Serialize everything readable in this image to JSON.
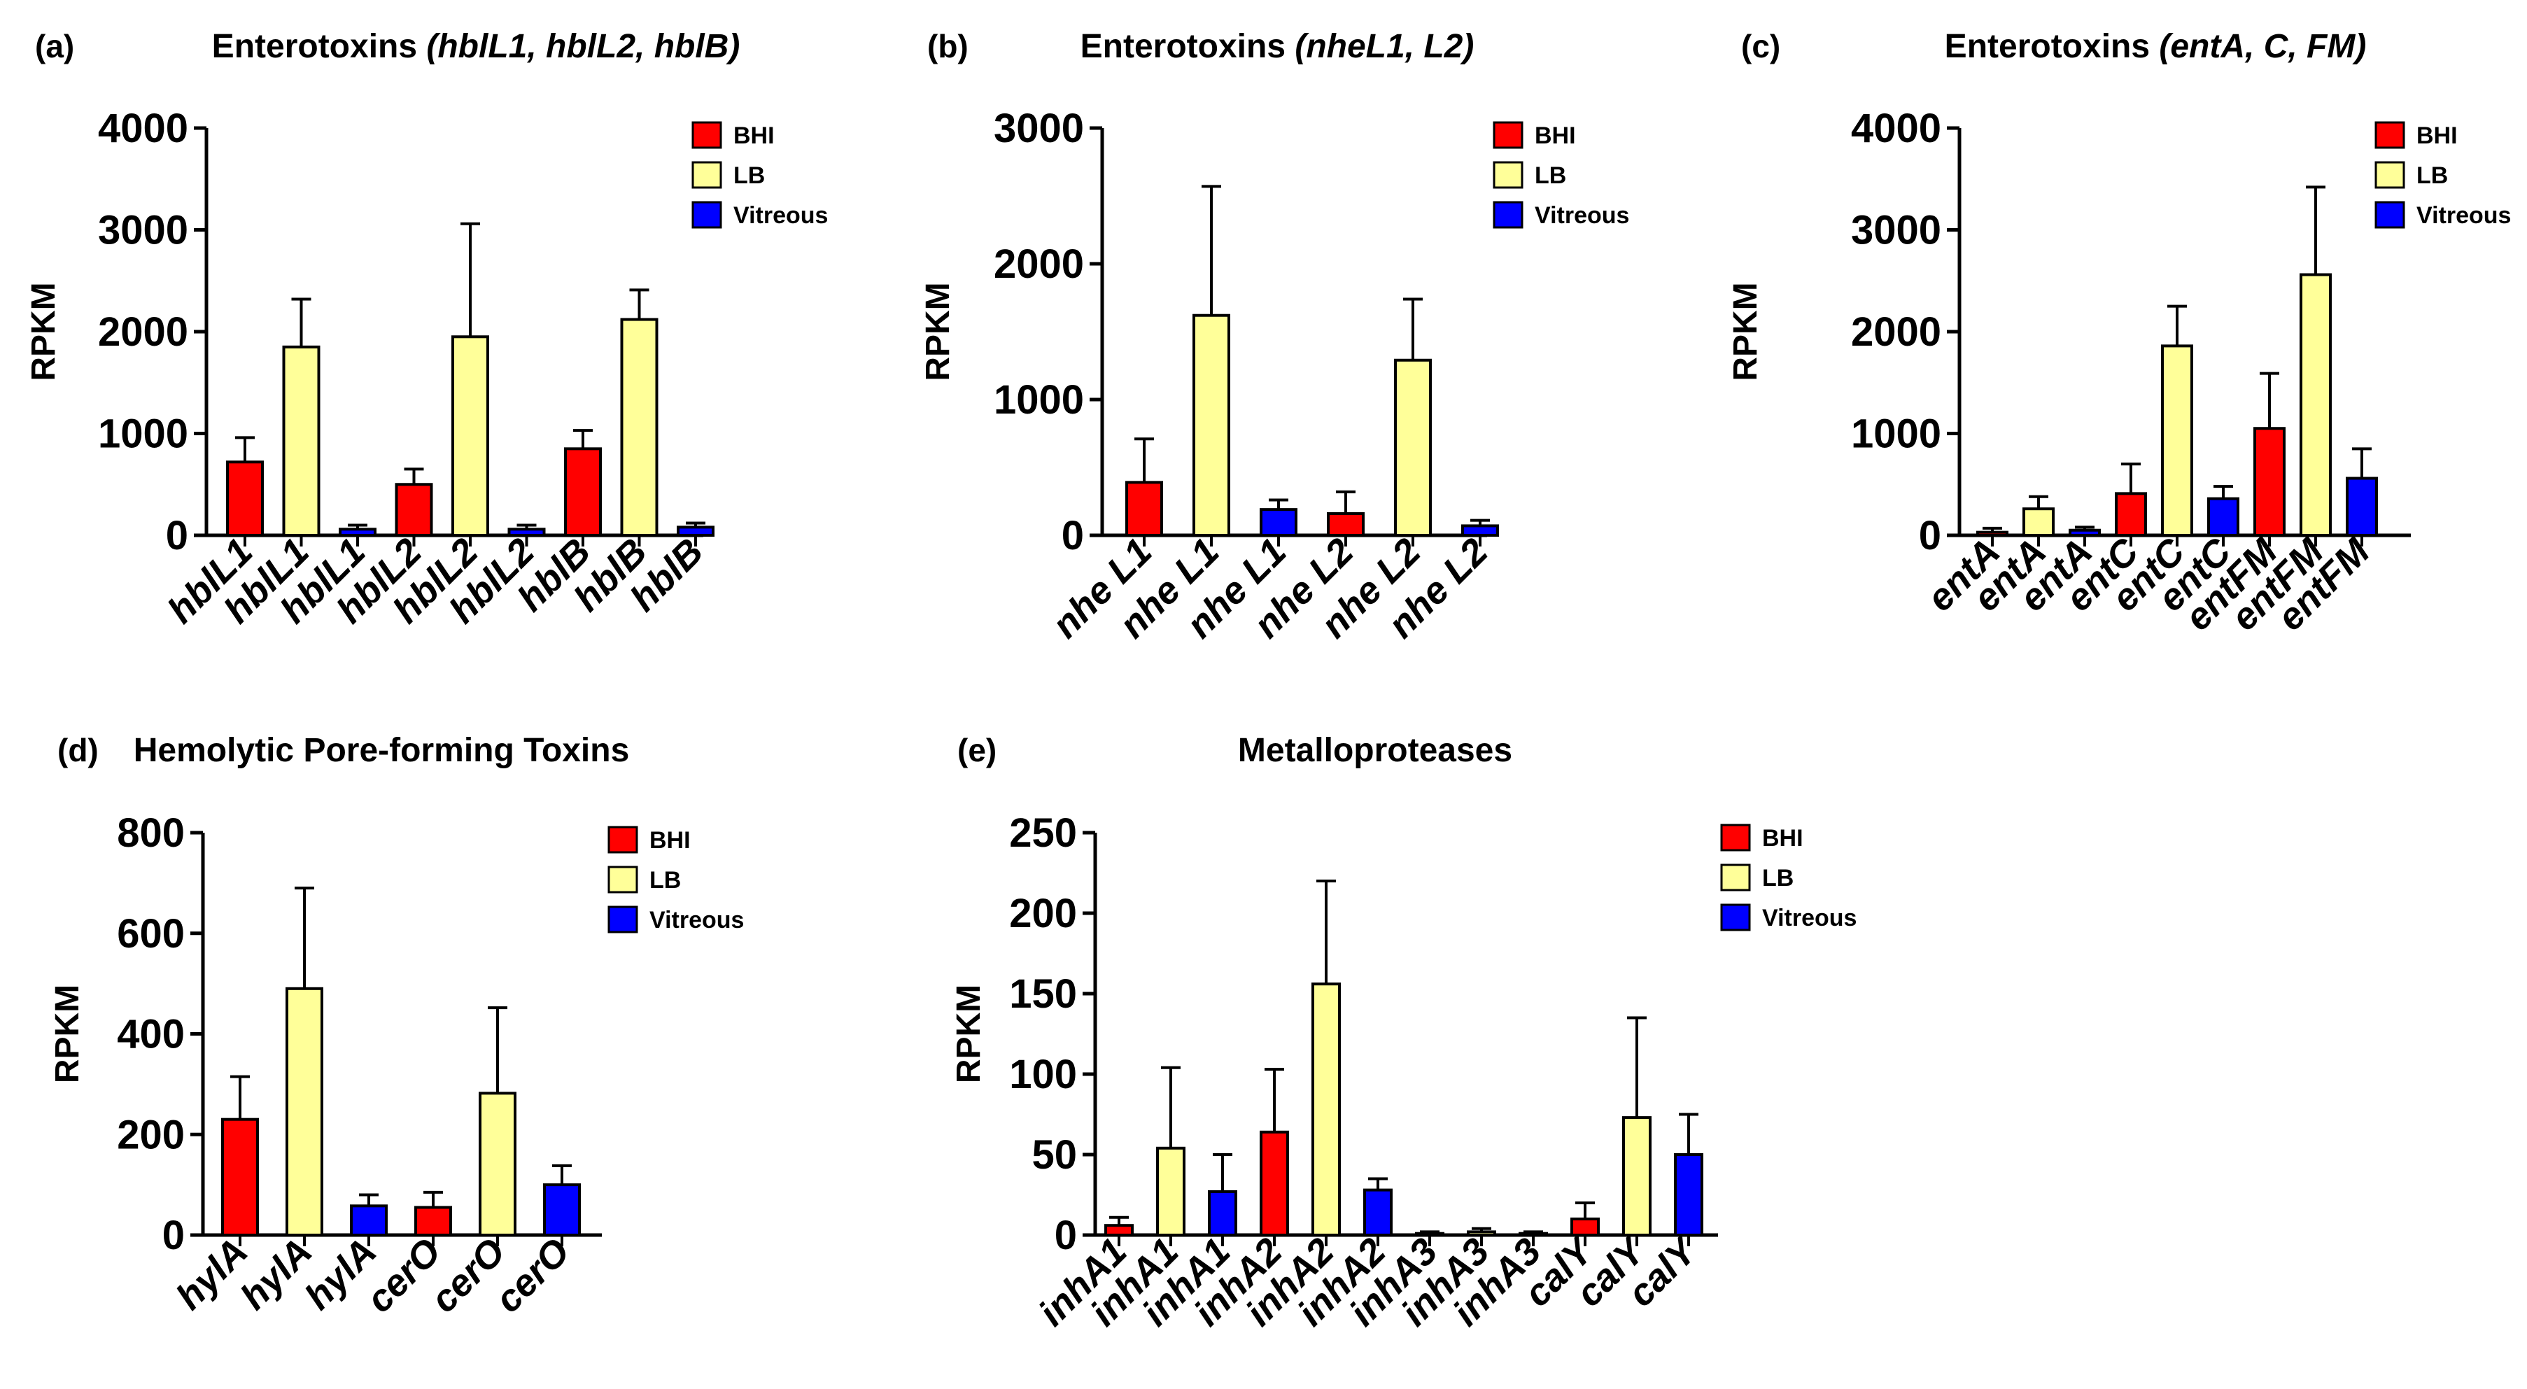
{
  "colors": {
    "BHI": "#ff0000",
    "LB": "#ffff99",
    "Vitreous": "#0000ff",
    "axis": "#000000"
  },
  "chart_data": [
    {
      "id": "a",
      "type": "bar",
      "panel_label": "(a)",
      "title": "Enterotoxins ",
      "title_italic": "(hblL1, hblL2, hblB)",
      "ylabel": "RPKM",
      "ylim": [
        0,
        4000
      ],
      "yticks": [
        "0",
        "1000",
        "2000",
        "3000",
        "4000"
      ],
      "legend": [
        "BHI",
        "LB",
        "Vitreous"
      ],
      "categories": [
        "hblL1",
        "hblL1",
        "hblL1",
        "hblL2",
        "hblL2",
        "hblL2",
        "hblB",
        "hblB",
        "hblB"
      ],
      "conditions": [
        "BHI",
        "LB",
        "Vitreous",
        "BHI",
        "LB",
        "Vitreous",
        "BHI",
        "LB",
        "Vitreous"
      ],
      "values": [
        720,
        1850,
        60,
        500,
        1950,
        60,
        850,
        2120,
        80
      ],
      "errors": [
        240,
        470,
        40,
        150,
        1110,
        40,
        180,
        290,
        40
      ]
    },
    {
      "id": "b",
      "type": "bar",
      "panel_label": "(b)",
      "title": "Enterotoxins ",
      "title_italic": "(nheL1, L2)",
      "ylabel": "RPKM",
      "ylim": [
        0,
        3000
      ],
      "yticks": [
        "0",
        "1000",
        "2000",
        "3000"
      ],
      "legend": [
        "BHI",
        "LB",
        "Vitreous"
      ],
      "categories": [
        "nhe L1",
        "nhe L1",
        "nhe L1",
        "nhe L2",
        "nhe L2",
        "nhe L2"
      ],
      "conditions": [
        "BHI",
        "LB",
        "Vitreous",
        "BHI",
        "LB",
        "Vitreous"
      ],
      "values": [
        390,
        1620,
        190,
        160,
        1290,
        70
      ],
      "errors": [
        320,
        950,
        70,
        160,
        450,
        40
      ]
    },
    {
      "id": "c",
      "type": "bar",
      "panel_label": "(c)",
      "title": "Enterotoxins ",
      "title_italic": "(entA, C, FM)",
      "ylabel": "RPKM",
      "ylim": [
        0,
        4000
      ],
      "yticks": [
        "0",
        "1000",
        "2000",
        "3000",
        "4000"
      ],
      "legend": [
        "BHI",
        "LB",
        "Vitreous"
      ],
      "categories": [
        "entA",
        "entA",
        "entA",
        "entC",
        "entC",
        "entC",
        "entFM",
        "entFM",
        "entFM"
      ],
      "conditions": [
        "BHI",
        "LB",
        "Vitreous",
        "BHI",
        "LB",
        "Vitreous",
        "BHI",
        "LB",
        "Vitreous"
      ],
      "values": [
        30,
        260,
        50,
        410,
        1860,
        360,
        1050,
        2560,
        560
      ],
      "errors": [
        40,
        120,
        30,
        290,
        390,
        120,
        540,
        860,
        290
      ]
    },
    {
      "id": "d",
      "type": "bar",
      "panel_label": "(d)",
      "title": "Hemolytic Pore-forming Toxins",
      "title_italic": "",
      "ylabel": "RPKM",
      "ylim": [
        0,
        800
      ],
      "yticks": [
        "0",
        "200",
        "400",
        "600",
        "800"
      ],
      "legend": [
        "BHI",
        "LB",
        "Vitreous"
      ],
      "categories": [
        "hylA",
        "hylA",
        "hylA",
        "cerO",
        "cerO",
        "cerO"
      ],
      "conditions": [
        "BHI",
        "LB",
        "Vitreous",
        "BHI",
        "LB",
        "Vitreous"
      ],
      "values": [
        230,
        490,
        58,
        55,
        282,
        100
      ],
      "errors": [
        85,
        200,
        22,
        30,
        170,
        38
      ]
    },
    {
      "id": "e",
      "type": "bar",
      "panel_label": "(e)",
      "title": "Metalloproteases",
      "title_italic": "",
      "ylabel": "RPKM",
      "ylim": [
        0,
        250
      ],
      "yticks": [
        "0",
        "50",
        "100",
        "150",
        "200",
        "250"
      ],
      "legend": [
        "BHI",
        "LB",
        "Vitreous"
      ],
      "categories": [
        "inhA1",
        "inhA1",
        "inhA1",
        "inhA2",
        "inhA2",
        "inhA2",
        "inhA3",
        "inhA3",
        "inhA3",
        "calY",
        "calY",
        "calY"
      ],
      "conditions": [
        "BHI",
        "LB",
        "Vitreous",
        "BHI",
        "LB",
        "Vitreous",
        "BHI",
        "LB",
        "Vitreous",
        "BHI",
        "LB",
        "Vitreous"
      ],
      "values": [
        6,
        54,
        27,
        64,
        156,
        28,
        1,
        2,
        1,
        10,
        73,
        50
      ],
      "errors": [
        5,
        50,
        23,
        39,
        64,
        7,
        1,
        2,
        1,
        10,
        62,
        25
      ]
    }
  ]
}
